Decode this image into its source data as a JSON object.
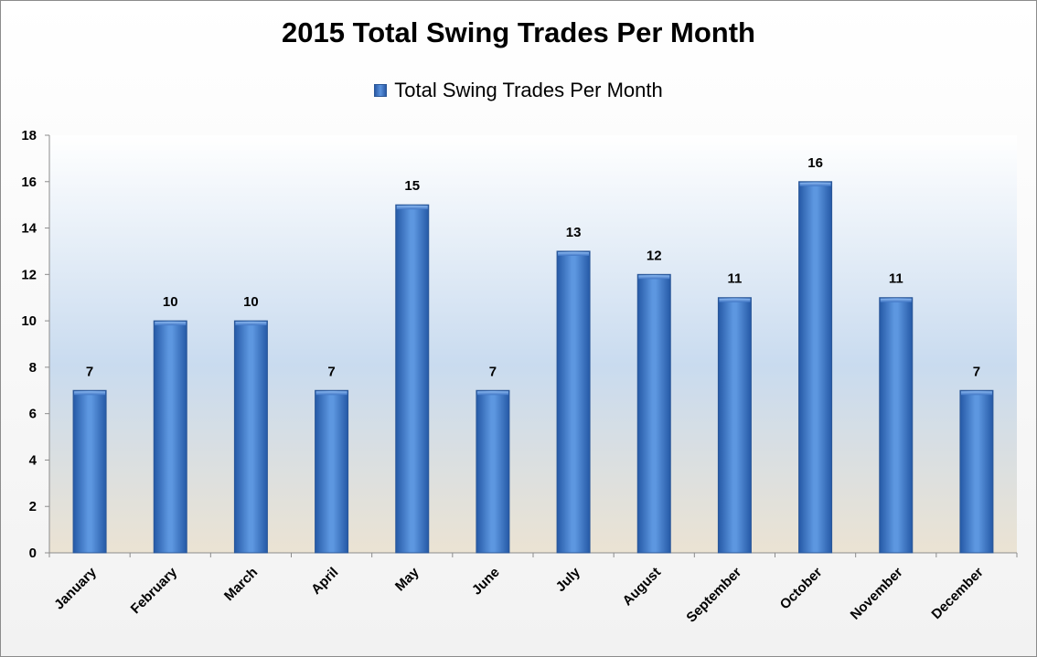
{
  "chart_data": {
    "type": "bar",
    "title": "2015 Total Swing Trades Per Month",
    "legend": {
      "position": "top",
      "entries": [
        "Total Swing Trades Per Month"
      ]
    },
    "categories": [
      "January",
      "February",
      "March",
      "April",
      "May",
      "June",
      "July",
      "August",
      "September",
      "October",
      "November",
      "December"
    ],
    "series": [
      {
        "name": "Total Swing Trades Per Month",
        "values": [
          7,
          10,
          10,
          7,
          15,
          7,
          13,
          12,
          11,
          16,
          11,
          7
        ]
      }
    ],
    "ylim": [
      0,
      18
    ],
    "yticks": [
      0,
      2,
      4,
      6,
      8,
      10,
      12,
      14,
      16,
      18
    ],
    "grid": false,
    "colors": {
      "bar": "#4a86d6",
      "bar_edge": "#2b5797"
    }
  }
}
